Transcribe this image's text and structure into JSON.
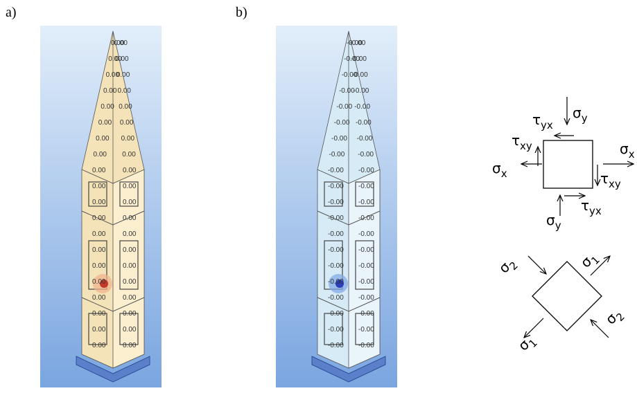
{
  "figure": {
    "panels": [
      {
        "label": "a)",
        "values": [
          "0.00",
          "0.00",
          "0.00",
          "0.00",
          "0.00",
          "0.00",
          "0.00",
          "0.00",
          "0.00",
          "0.00",
          "0.00",
          "0.00",
          "0.00",
          "0.00",
          "0.00",
          "0.00",
          "0.00",
          "0.00",
          "0.00",
          "0.00",
          "0.00",
          "0.00",
          "0.00",
          "0.00",
          "0.00",
          "0.00",
          "0.00",
          "0.00",
          "0.00",
          "0.00",
          "0.00",
          "0.00",
          "0.00",
          "0.00",
          "0.00",
          "0.00",
          "0.00",
          "0.00",
          "0.00",
          "0.00"
        ]
      },
      {
        "label": "b)",
        "values": [
          "-0.00",
          "-0.00",
          "-0.00",
          "-0.00",
          "-0.00",
          "-0.00",
          "-0.00",
          "-0.00",
          "-0.00",
          "-0.00",
          "-0.00",
          "-0.00",
          "-0.00",
          "-0.00",
          "-0.00",
          "-0.00",
          "-0.00",
          "-0.00",
          "-0.00",
          "-0.00",
          "-0.00",
          "-0.00",
          "-0.00",
          "-0.00",
          "-0.00",
          "-0.00",
          "-0.00",
          "-0.00",
          "-0.00",
          "-0.00",
          "-0.00",
          "-0.00",
          "-0.00",
          "-0.00",
          "-0.00",
          "-0.00",
          "-0.00",
          "-0.00",
          "-0.00",
          "-0.00"
        ]
      }
    ],
    "stress_element": {
      "sigma_y_top": {
        "symbol": "σ",
        "sub": "y"
      },
      "tau_yx_top": {
        "symbol": "τ",
        "sub": "yx"
      },
      "tau_xy_left": {
        "symbol": "τ",
        "sub": "xy"
      },
      "sigma_x_left": {
        "symbol": "σ",
        "sub": "x"
      },
      "sigma_x_right": {
        "symbol": "σ",
        "sub": "x"
      },
      "tau_xy_right": {
        "symbol": "τ",
        "sub": "xy"
      },
      "sigma_y_bottom": {
        "symbol": "σ",
        "sub": "y"
      },
      "tau_yx_bottom": {
        "symbol": "τ",
        "sub": "yx"
      }
    },
    "principal_element": {
      "sigma_1_top": {
        "symbol": "σ",
        "sub": "1"
      },
      "sigma_1_bottom": {
        "symbol": "σ",
        "sub": "1"
      },
      "sigma_2_top": {
        "symbol": "σ",
        "sub": "2"
      },
      "sigma_2_bottom": {
        "symbol": "σ",
        "sub": "2"
      }
    }
  }
}
